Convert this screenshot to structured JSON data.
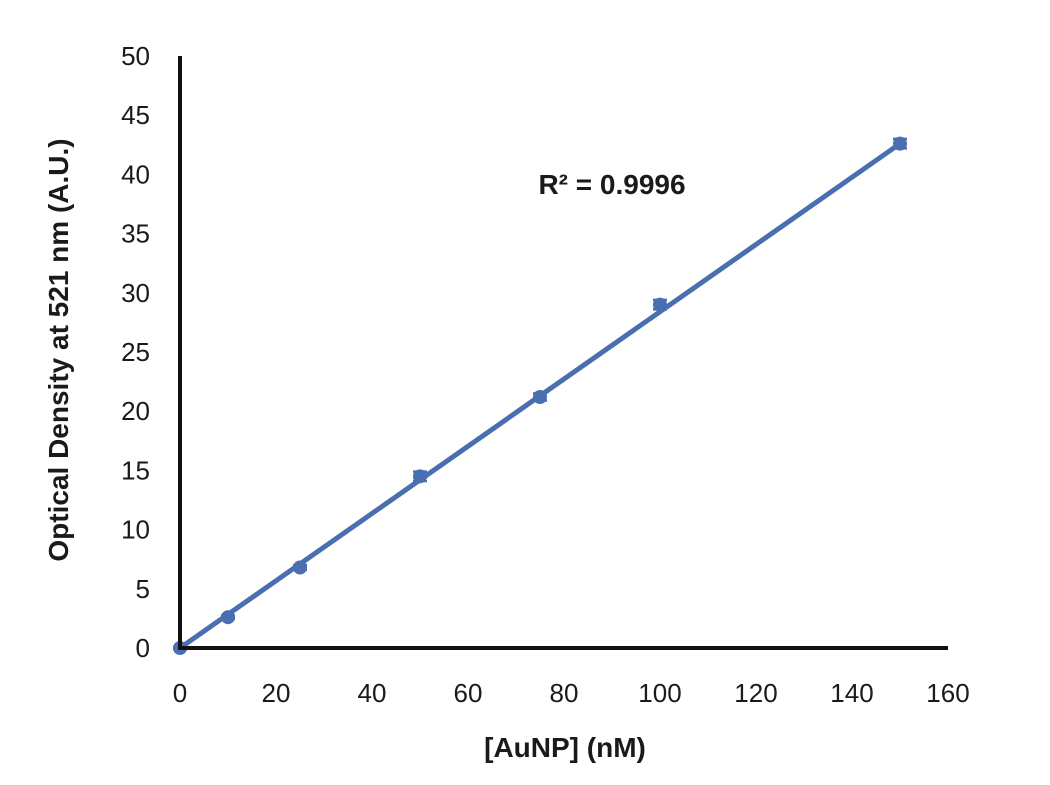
{
  "chart_data": {
    "type": "scatter",
    "title": "",
    "xlabel": "[AuNP] (nM)",
    "ylabel": "Optical Density at 521 nm (A.U.)",
    "xlim": [
      0,
      160
    ],
    "ylim": [
      0,
      50
    ],
    "x_ticks": [
      0,
      20,
      40,
      60,
      80,
      100,
      120,
      140,
      160
    ],
    "y_ticks": [
      0,
      5,
      10,
      15,
      20,
      25,
      30,
      35,
      40,
      45,
      50
    ],
    "grid": false,
    "legend": "none",
    "series": [
      {
        "x": [
          0,
          10,
          25,
          50,
          75,
          100,
          150
        ],
        "y": [
          0,
          2.6,
          6.8,
          14.5,
          21.2,
          29.0,
          42.6
        ],
        "error": [
          0.1,
          0.15,
          0.2,
          0.4,
          0.3,
          0.4,
          0.4
        ],
        "color": "#4a6fb0"
      }
    ],
    "trendline": {
      "type": "linear",
      "x": [
        0,
        150
      ],
      "y": [
        0,
        42.6
      ],
      "color": "#4a6fb0"
    },
    "annotation": "R² = 0.9996"
  }
}
